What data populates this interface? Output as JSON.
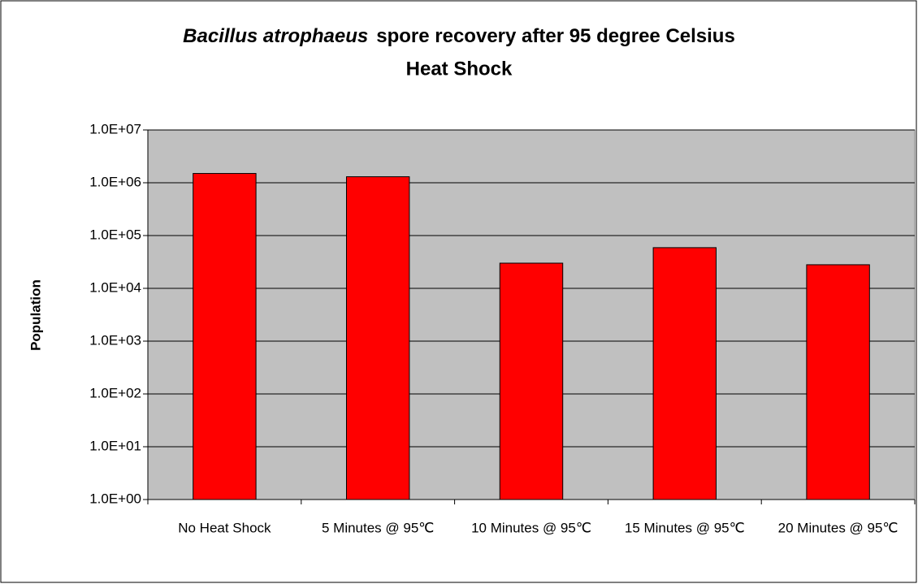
{
  "chart_data": {
    "type": "bar",
    "title": [
      "Bacillus atrophaeus",
      "spore recovery after 95 degree Celsius",
      "Heat Shock"
    ],
    "y_label": "Population",
    "categories": [
      "No Heat Shock",
      "5 Minutes @ 95℃",
      "10 Minutes @ 95℃",
      "15 Minutes @ 95℃",
      "20 Minutes @ 95℃"
    ],
    "values": [
      1500000,
      1300000,
      30000,
      59000,
      28000
    ],
    "color": "#ff0000",
    "log_scale": true,
    "ylim": [
      1,
      10000000
    ],
    "yticks": [
      {
        "value": 1,
        "label": "1.0E+00"
      },
      {
        "value": 10,
        "label": "1.0E+01"
      },
      {
        "value": 100,
        "label": "1.0E+02"
      },
      {
        "value": 1000,
        "label": "1.0E+03"
      },
      {
        "value": 10000,
        "label": "1.0E+04"
      },
      {
        "value": 100000,
        "label": "1.0E+05"
      },
      {
        "value": 1000000,
        "label": "1.0E+06"
      },
      {
        "value": 10000000,
        "label": "1.0E+07"
      }
    ],
    "grid": true
  }
}
